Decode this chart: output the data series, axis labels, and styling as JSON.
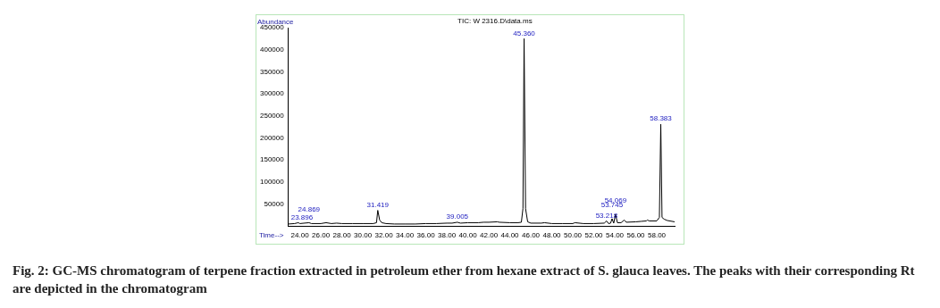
{
  "chart_data": {
    "type": "line",
    "title": "TIC: W 2316.D\\data.ms",
    "xlabel": "Time-->",
    "ylabel": "Abundance",
    "color": "#000000",
    "marker": "none",
    "grid": false,
    "legend": false,
    "xlim": [
      22.9,
      59.7
    ],
    "ylim": [
      0,
      450000
    ],
    "xticks": [
      {
        "value": 24,
        "label": "24.00"
      },
      {
        "value": 26,
        "label": "26.00"
      },
      {
        "value": 28,
        "label": "28.00"
      },
      {
        "value": 30,
        "label": "30.00"
      },
      {
        "value": 32,
        "label": "32.00"
      },
      {
        "value": 34,
        "label": "34.00"
      },
      {
        "value": 36,
        "label": "36.00"
      },
      {
        "value": 38,
        "label": "38.00"
      },
      {
        "value": 40,
        "label": "40.00"
      },
      {
        "value": 42,
        "label": "42.00"
      },
      {
        "value": 44,
        "label": "44.00"
      },
      {
        "value": 46,
        "label": "46.00"
      },
      {
        "value": 48,
        "label": "48.00"
      },
      {
        "value": 50,
        "label": "50.00"
      },
      {
        "value": 52,
        "label": "52.00"
      },
      {
        "value": 54,
        "label": "54.00"
      },
      {
        "value": 56,
        "label": "56.00"
      },
      {
        "value": 58,
        "label": "58.00"
      }
    ],
    "yticks": [
      50000,
      100000,
      150000,
      200000,
      250000,
      300000,
      350000,
      400000,
      450000
    ],
    "x": [
      22.9,
      23.5,
      23.85,
      24.0,
      24.87,
      25.1,
      26,
      26.5,
      27,
      27.5,
      28,
      29,
      30,
      31,
      31.3,
      31.42,
      31.6,
      31.8,
      32.2,
      33,
      34,
      35,
      36,
      37,
      38,
      38.5,
      39.0,
      39.3,
      40,
      41,
      41.5,
      42,
      42.8,
      43,
      44,
      44.8,
      45.1,
      45.25,
      45.36,
      45.5,
      45.7,
      46,
      47,
      47.3,
      48,
      49,
      50,
      50.2,
      51,
      52,
      53,
      53.22,
      53.4,
      53.6,
      53.74,
      53.9,
      54.07,
      54.25,
      54.6,
      54.9,
      55.1,
      56,
      56.5,
      57,
      57.1,
      57.3,
      58,
      58.25,
      58.383,
      58.5,
      58.7,
      59,
      59.7
    ],
    "values": [
      5000,
      6000,
      8000,
      6000,
      8000,
      6000,
      6000,
      8000,
      6000,
      7000,
      6000,
      6000,
      6000,
      6000,
      8000,
      36000,
      14000,
      8000,
      6000,
      5000,
      5000,
      5000,
      6000,
      6000,
      7000,
      7000,
      9000,
      7000,
      8000,
      8000,
      9000,
      9000,
      10000,
      9000,
      8000,
      8000,
      9000,
      40000,
      425000,
      40000,
      10000,
      7000,
      7000,
      8000,
      6000,
      6000,
      6000,
      8000,
      6000,
      6000,
      7000,
      12000,
      6000,
      7000,
      17000,
      7000,
      27000,
      8000,
      8000,
      14000,
      9000,
      10000,
      11000,
      12000,
      14000,
      12000,
      12000,
      20000,
      231000,
      20000,
      16000,
      13000,
      10000
    ],
    "annotations": [
      {
        "text": "23.896",
        "x": 23.85,
        "y": 8000
      },
      {
        "text": "24.869",
        "x": 24.87,
        "y": 8000
      },
      {
        "text": "31.419",
        "x": 31.42,
        "y": 36000
      },
      {
        "text": "39.005",
        "x": 39.0,
        "y": 8500
      },
      {
        "text": "45.360",
        "x": 45.36,
        "y": 425000
      },
      {
        "text": "53.218",
        "x": 53.22,
        "y": 12000
      },
      {
        "text": "53.745",
        "x": 53.74,
        "y": 17000
      },
      {
        "text": "54.069",
        "x": 54.07,
        "y": 27000
      },
      {
        "text": "58.383",
        "x": 58.383,
        "y": 231000
      },
      "Fig. 2: GC-MS chromatogram of terpene fraction extracted in petroleum ether from hexane extract of S. glauca leaves. The peaks with their corresponding Rt are depicted in the chromatogram"
    ]
  }
}
